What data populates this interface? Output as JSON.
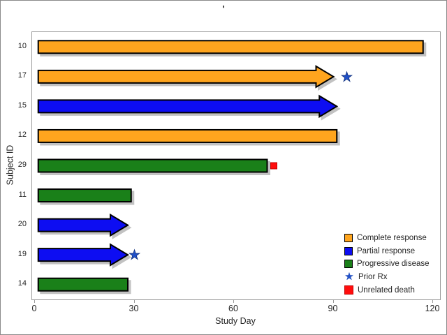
{
  "title": "'",
  "colors": {
    "complete_response": "#FFA51E",
    "partial_response": "#0D0DF2",
    "progressive_disease": "#1A8019",
    "prior_rx_star": "#2050C8",
    "prior_rx_star_edge": "#10307E",
    "unrelated_death": "#FF0D0D",
    "unrelated_death_edge": "#C00000",
    "bar_border": "#000000",
    "shadow": "#C2C2C2",
    "plot_border": "#9B9B9B",
    "text": "#262626"
  },
  "chart_data": {
    "type": "bar",
    "orientation": "horizontal",
    "title": "'",
    "xlabel": "Study Day",
    "ylabel": "Subject ID",
    "xlim": [
      0,
      120
    ],
    "x_ticks": [
      "0",
      "30",
      "60",
      "90",
      "120"
    ],
    "x_tick_values": [
      0,
      30,
      60,
      90,
      120
    ],
    "grid": false,
    "legend_position": "inside-bottom-right",
    "categories": [
      "10",
      "17",
      "15",
      "12",
      "29",
      "11",
      "20",
      "19",
      "14"
    ],
    "bars": [
      {
        "subject": "10",
        "response": "Complete response",
        "color_key": "complete_response",
        "start": 1,
        "end": 117,
        "ongoing_arrow": false,
        "prior_rx_day": null,
        "unrelated_death_day": null
      },
      {
        "subject": "17",
        "response": "Complete response",
        "color_key": "complete_response",
        "start": 1,
        "end": 90,
        "ongoing_arrow": true,
        "prior_rx_day": 94,
        "unrelated_death_day": null
      },
      {
        "subject": "15",
        "response": "Partial response",
        "color_key": "partial_response",
        "start": 1,
        "end": 91,
        "ongoing_arrow": true,
        "prior_rx_day": null,
        "unrelated_death_day": null
      },
      {
        "subject": "12",
        "response": "Complete response",
        "color_key": "complete_response",
        "start": 1,
        "end": 91,
        "ongoing_arrow": false,
        "prior_rx_day": null,
        "unrelated_death_day": null
      },
      {
        "subject": "29",
        "response": "Progressive disease",
        "color_key": "progressive_disease",
        "start": 1,
        "end": 70,
        "ongoing_arrow": false,
        "prior_rx_day": null,
        "unrelated_death_day": 72
      },
      {
        "subject": "11",
        "response": "Progressive disease",
        "color_key": "progressive_disease",
        "start": 1,
        "end": 29,
        "ongoing_arrow": false,
        "prior_rx_day": null,
        "unrelated_death_day": null
      },
      {
        "subject": "20",
        "response": "Partial response",
        "color_key": "partial_response",
        "start": 1,
        "end": 28,
        "ongoing_arrow": true,
        "prior_rx_day": null,
        "unrelated_death_day": null
      },
      {
        "subject": "19",
        "response": "Partial response",
        "color_key": "partial_response",
        "start": 1,
        "end": 28,
        "ongoing_arrow": true,
        "prior_rx_day": 30,
        "unrelated_death_day": null
      },
      {
        "subject": "14",
        "response": "Progressive disease",
        "color_key": "progressive_disease",
        "start": 1,
        "end": 28,
        "ongoing_arrow": false,
        "prior_rx_day": null,
        "unrelated_death_day": null
      }
    ]
  },
  "legend": {
    "items": [
      {
        "label": "Complete response",
        "marker": "square",
        "color_key": "complete_response"
      },
      {
        "label": "Partial response",
        "marker": "square",
        "color_key": "partial_response"
      },
      {
        "label": "Progressive disease",
        "marker": "square",
        "color_key": "progressive_disease"
      },
      {
        "label": "Prior Rx",
        "marker": "star",
        "color_key": "prior_rx_star"
      },
      {
        "label": "Unrelated death",
        "marker": "square_plain",
        "color_key": "unrelated_death"
      }
    ],
    "star_glyph": "★"
  }
}
